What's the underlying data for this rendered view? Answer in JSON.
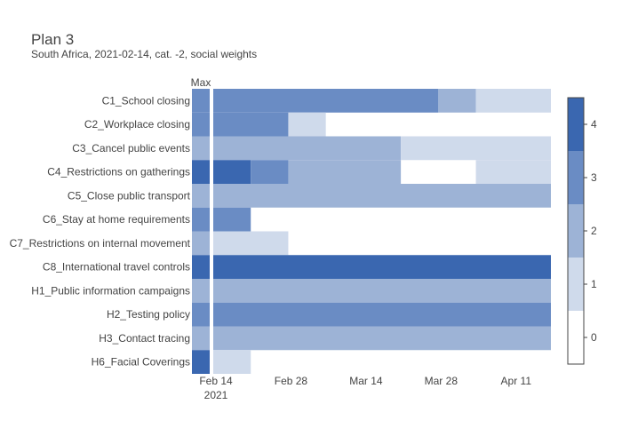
{
  "chart_data": {
    "type": "heatmap",
    "title": "Plan 3",
    "subtitle": "South Africa, 2021-02-14, cat. -2, social weights",
    "max_column_label": "Max",
    "rows": [
      "C1_School closing",
      "C2_Workplace closing",
      "C3_Cancel public events",
      "C4_Restrictions on gatherings",
      "C5_Close public transport",
      "C6_Stay at home requirements",
      "C7_Restrictions on internal movement",
      "C8_International travel controls",
      "H1_Public information campaigns",
      "H2_Testing policy",
      "H3_Contact tracing",
      "H6_Facial Coverings"
    ],
    "max_values": [
      3,
      3,
      2,
      4,
      2,
      3,
      2,
      4,
      2,
      3,
      2,
      4
    ],
    "plan_segments": [
      [
        {
          "start": "2021-02-14",
          "end": "2021-03-28",
          "value": 3
        },
        {
          "start": "2021-03-28",
          "end": "2021-04-04",
          "value": 2
        },
        {
          "start": "2021-04-04",
          "end": "2021-04-18",
          "value": 1
        }
      ],
      [
        {
          "start": "2021-02-14",
          "end": "2021-02-28",
          "value": 3
        },
        {
          "start": "2021-02-28",
          "end": "2021-03-07",
          "value": 1
        }
      ],
      [
        {
          "start": "2021-02-14",
          "end": "2021-03-21",
          "value": 2
        },
        {
          "start": "2021-03-21",
          "end": "2021-04-18",
          "value": 1
        }
      ],
      [
        {
          "start": "2021-02-14",
          "end": "2021-02-21",
          "value": 4
        },
        {
          "start": "2021-02-21",
          "end": "2021-02-28",
          "value": 3
        },
        {
          "start": "2021-02-28",
          "end": "2021-03-21",
          "value": 2
        },
        {
          "start": "2021-04-04",
          "end": "2021-04-18",
          "value": 1
        }
      ],
      [
        {
          "start": "2021-02-14",
          "end": "2021-04-18",
          "value": 2
        }
      ],
      [
        {
          "start": "2021-02-14",
          "end": "2021-02-21",
          "value": 3
        }
      ],
      [
        {
          "start": "2021-02-14",
          "end": "2021-02-28",
          "value": 1
        }
      ],
      [
        {
          "start": "2021-02-14",
          "end": "2021-04-18",
          "value": 4
        }
      ],
      [
        {
          "start": "2021-02-14",
          "end": "2021-04-18",
          "value": 2
        }
      ],
      [
        {
          "start": "2021-02-14",
          "end": "2021-04-18",
          "value": 3
        }
      ],
      [
        {
          "start": "2021-02-14",
          "end": "2021-04-18",
          "value": 2
        }
      ],
      [
        {
          "start": "2021-02-14",
          "end": "2021-02-21",
          "value": 1
        }
      ]
    ],
    "x_range": [
      "2021-02-14",
      "2021-04-18"
    ],
    "x_ticks": [
      {
        "date": "2021-02-14",
        "label": "Feb 14",
        "sublabel": "2021"
      },
      {
        "date": "2021-02-28",
        "label": "Feb 28",
        "sublabel": ""
      },
      {
        "date": "2021-03-14",
        "label": "Mar 14",
        "sublabel": ""
      },
      {
        "date": "2021-03-28",
        "label": "Mar 28",
        "sublabel": ""
      },
      {
        "date": "2021-04-11",
        "label": "Apr 11",
        "sublabel": ""
      }
    ],
    "colorscale": [
      "#ffffff",
      "#cfdaeb",
      "#9db3d6",
      "#6a8cc4",
      "#3a67b0"
    ],
    "colorbar_ticks": [
      "0",
      "1",
      "2",
      "3",
      "4"
    ],
    "grid": false,
    "legend": "colorbar-right"
  }
}
